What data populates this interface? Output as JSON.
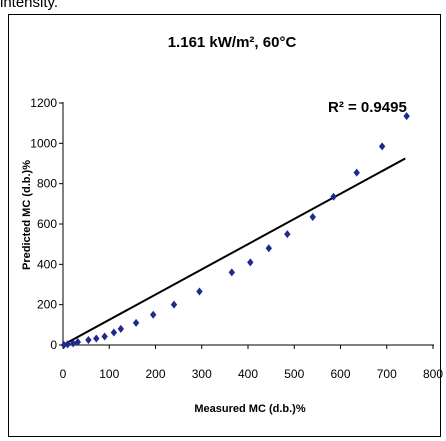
{
  "page": {
    "caption_fragment": "intensity."
  },
  "chart_data": {
    "type": "scatter",
    "title": "1.161 kW/m², 60°C",
    "xlabel": "Measured MC (d.b.)%",
    "ylabel": "Predicted MC (d.b.)%",
    "xlim": [
      0,
      800
    ],
    "ylim": [
      0,
      1200
    ],
    "xticks": [
      "0",
      "100",
      "200",
      "300",
      "400",
      "500",
      "600",
      "700",
      "800"
    ],
    "yticks": [
      "0",
      "200",
      "400",
      "600",
      "800",
      "1000",
      "1200"
    ],
    "annotation": "R² = 0.9495",
    "grid": false,
    "legend": "none",
    "marker_color": "#1f2a8c",
    "trendline_color": "#000000",
    "trendline": {
      "x": [
        0,
        740
      ],
      "y": [
        0,
        925
      ]
    },
    "points": [
      {
        "x": 2,
        "y": 0
      },
      {
        "x": 10,
        "y": 3
      },
      {
        "x": 22,
        "y": 8
      },
      {
        "x": 32,
        "y": 15
      },
      {
        "x": 55,
        "y": 25
      },
      {
        "x": 72,
        "y": 32
      },
      {
        "x": 90,
        "y": 42
      },
      {
        "x": 110,
        "y": 62
      },
      {
        "x": 125,
        "y": 80
      },
      {
        "x": 158,
        "y": 110
      },
      {
        "x": 195,
        "y": 150
      },
      {
        "x": 240,
        "y": 200
      },
      {
        "x": 295,
        "y": 265
      },
      {
        "x": 365,
        "y": 360
      },
      {
        "x": 405,
        "y": 410
      },
      {
        "x": 445,
        "y": 480
      },
      {
        "x": 485,
        "y": 550
      },
      {
        "x": 540,
        "y": 635
      },
      {
        "x": 585,
        "y": 735
      },
      {
        "x": 635,
        "y": 855
      },
      {
        "x": 690,
        "y": 985
      },
      {
        "x": 743,
        "y": 1135
      }
    ]
  }
}
